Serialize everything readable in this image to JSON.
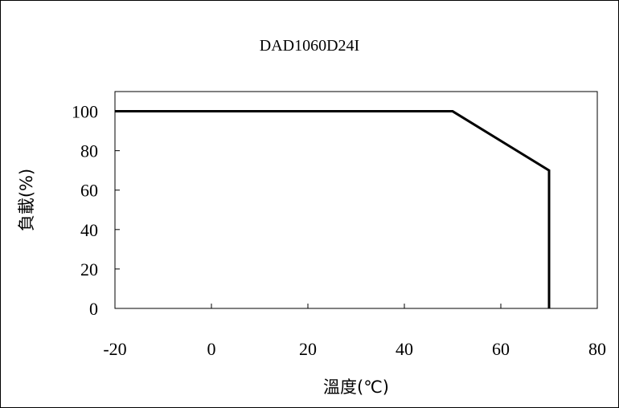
{
  "chart_data": {
    "type": "line",
    "title": "DAD1060D24I",
    "xlabel": "溫度(℃)",
    "ylabel": "負載(%)",
    "xlim": [
      -20,
      80
    ],
    "ylim": [
      0,
      110
    ],
    "xticks": [
      -20,
      0,
      20,
      40,
      60,
      80
    ],
    "yticks": [
      0,
      20,
      40,
      60,
      80,
      100
    ],
    "x_tick_labels": [
      "-20",
      "0",
      "20",
      "40",
      "60",
      "80"
    ],
    "y_tick_labels": [
      "0",
      "20",
      "40",
      "60",
      "80",
      "100"
    ],
    "grid": false,
    "series": [
      {
        "x": [
          -20,
          50,
          70,
          70
        ],
        "y": [
          100,
          100,
          70,
          0
        ]
      }
    ]
  }
}
